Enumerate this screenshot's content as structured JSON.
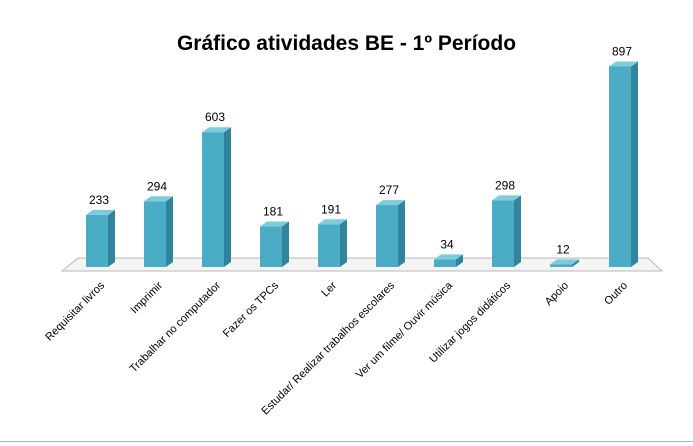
{
  "chart_data": {
    "type": "bar",
    "title": "Gráfico atividades BE - 1º Período",
    "categories": [
      "Requisitar livros",
      "Imprimir",
      "Trabalhar no computador",
      "Fazer os TPCs",
      "Ler",
      "Estudar/ Realizar trabalhos escolares",
      "Ver um filme/ Ouvir música",
      "Utilizar jogos didáticos",
      "Apoio",
      "Outro"
    ],
    "values": [
      233,
      294,
      603,
      181,
      191,
      277,
      34,
      298,
      12,
      897
    ],
    "data_labels": [
      "233",
      "294",
      "603",
      "181",
      "191",
      "277",
      "34",
      "298",
      "12",
      "897"
    ],
    "xlabel": "",
    "ylabel": "",
    "ylim": [
      0,
      900
    ],
    "grid": false,
    "legend": "none",
    "style": "3d-column",
    "colors": {
      "bar_front": "#4bacc6",
      "bar_side": "#31849b",
      "bar_top": "#7ecbdd",
      "floor": "#f4f4f4",
      "floor_edge": "#b9b9b9"
    }
  }
}
